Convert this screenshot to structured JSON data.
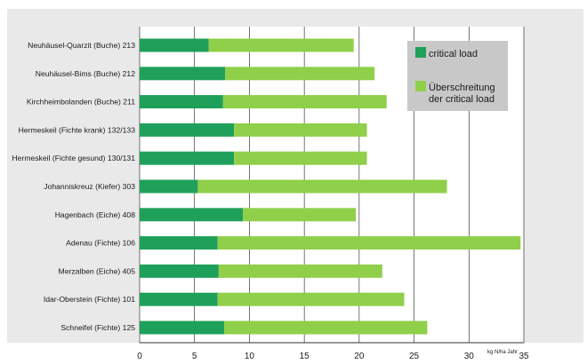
{
  "chart_data": {
    "type": "bar",
    "stacked": true,
    "orientation": "horizontal",
    "categories": [
      "Neuhäusel-Quarzit (Buche) 213",
      "Neuhäusel-Bims (Buche) 212",
      "Kirchheimbolanden (Buche) 211",
      "Hermeskeil (Fichte krank) 132/133",
      "Hermeskeil (Fichte gesund) 130/131",
      "Johanniskreuz (Kiefer) 303",
      "Hagenbach (Eiche) 408",
      "Adenau (Fichte) 106",
      "Merzalben (Eiche) 405",
      "Idar-Oberstein (Fichte) 101",
      "Schneifel (Fichte) 125"
    ],
    "series": [
      {
        "name": "critical load",
        "color": "#1fa05a",
        "values": [
          6.3,
          7.8,
          7.6,
          8.6,
          8.6,
          5.3,
          9.4,
          7.1,
          7.2,
          7.1,
          7.7
        ]
      },
      {
        "name": "Überschreitung der critical load",
        "color": "#8fcf4a",
        "values": [
          13.2,
          13.6,
          14.9,
          12.1,
          12.1,
          22.7,
          10.3,
          27.6,
          14.9,
          17.0,
          18.5
        ]
      }
    ],
    "xlim": [
      0,
      35
    ],
    "xticks": [
      0,
      5,
      10,
      15,
      20,
      25,
      30,
      35
    ],
    "xlabel": "kg N/ha Jahr",
    "grid": true,
    "legend_position": "top-right"
  }
}
